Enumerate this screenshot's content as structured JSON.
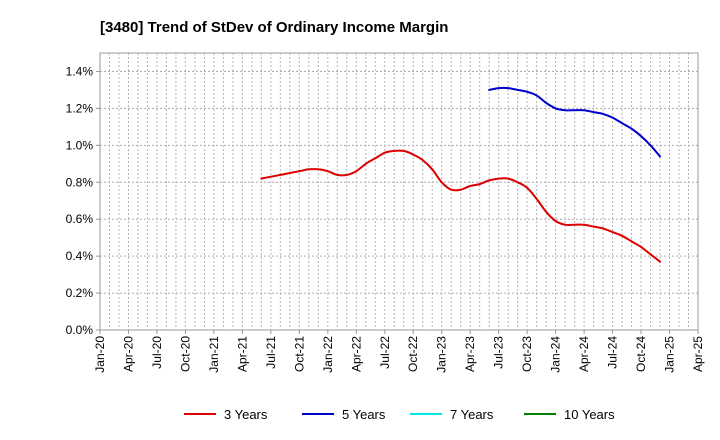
{
  "chart_data": {
    "type": "line",
    "title": "[3480]  Trend of StDev of Ordinary Income Margin",
    "xlabel": "",
    "ylabel": "",
    "x_ticks": [
      "Jan-20",
      "Apr-20",
      "Jul-20",
      "Oct-20",
      "Jan-21",
      "Apr-21",
      "Jul-21",
      "Oct-21",
      "Jan-22",
      "Apr-22",
      "Jul-22",
      "Oct-22",
      "Jan-23",
      "Apr-23",
      "Jul-23",
      "Oct-23",
      "Jan-24",
      "Apr-24",
      "Jul-24",
      "Oct-24",
      "Jan-25",
      "Apr-25"
    ],
    "y_ticks": [
      "0.0%",
      "0.2%",
      "0.4%",
      "0.6%",
      "0.8%",
      "1.0%",
      "1.2%",
      "1.4%"
    ],
    "ylim": [
      0,
      1.5
    ],
    "grid": true,
    "legend_position": "bottom",
    "series": [
      {
        "name": "3 Years",
        "color": "#dd0000",
        "points": [
          [
            "Jun-21",
            0.82
          ],
          [
            "Jul-21",
            0.83
          ],
          [
            "Aug-21",
            0.84
          ],
          [
            "Sep-21",
            0.85
          ],
          [
            "Oct-21",
            0.86
          ],
          [
            "Nov-21",
            0.87
          ],
          [
            "Dec-21",
            0.87
          ],
          [
            "Jan-22",
            0.86
          ],
          [
            "Feb-22",
            0.84
          ],
          [
            "Mar-22",
            0.84
          ],
          [
            "Apr-22",
            0.86
          ],
          [
            "May-22",
            0.9
          ],
          [
            "Jun-22",
            0.93
          ],
          [
            "Jul-22",
            0.96
          ],
          [
            "Aug-22",
            0.97
          ],
          [
            "Sep-22",
            0.97
          ],
          [
            "Oct-22",
            0.95
          ],
          [
            "Nov-22",
            0.92
          ],
          [
            "Dec-22",
            0.87
          ],
          [
            "Jan-23",
            0.8
          ],
          [
            "Feb-23",
            0.76
          ],
          [
            "Mar-23",
            0.76
          ],
          [
            "Apr-23",
            0.78
          ],
          [
            "May-23",
            0.79
          ],
          [
            "Jun-23",
            0.81
          ],
          [
            "Jul-23",
            0.82
          ],
          [
            "Aug-23",
            0.82
          ],
          [
            "Sep-23",
            0.8
          ],
          [
            "Oct-23",
            0.77
          ],
          [
            "Nov-23",
            0.71
          ],
          [
            "Dec-23",
            0.64
          ],
          [
            "Jan-24",
            0.59
          ],
          [
            "Feb-24",
            0.57
          ],
          [
            "Mar-24",
            0.57
          ],
          [
            "Apr-24",
            0.57
          ],
          [
            "May-24",
            0.56
          ],
          [
            "Jun-24",
            0.55
          ],
          [
            "Jul-24",
            0.53
          ],
          [
            "Aug-24",
            0.51
          ],
          [
            "Sep-24",
            0.48
          ],
          [
            "Oct-24",
            0.45
          ],
          [
            "Nov-24",
            0.41
          ],
          [
            "Dec-24",
            0.37
          ]
        ]
      },
      {
        "name": "5 Years",
        "color": "#0000cc",
        "points": [
          [
            "Jun-23",
            1.3
          ],
          [
            "Jul-23",
            1.31
          ],
          [
            "Aug-23",
            1.31
          ],
          [
            "Sep-23",
            1.3
          ],
          [
            "Oct-23",
            1.29
          ],
          [
            "Nov-23",
            1.27
          ],
          [
            "Dec-23",
            1.23
          ],
          [
            "Jan-24",
            1.2
          ],
          [
            "Feb-24",
            1.19
          ],
          [
            "Mar-24",
            1.19
          ],
          [
            "Apr-24",
            1.19
          ],
          [
            "May-24",
            1.18
          ],
          [
            "Jun-24",
            1.17
          ],
          [
            "Jul-24",
            1.15
          ],
          [
            "Aug-24",
            1.12
          ],
          [
            "Sep-24",
            1.09
          ],
          [
            "Oct-24",
            1.05
          ],
          [
            "Nov-24",
            1.0
          ],
          [
            "Dec-24",
            0.94
          ]
        ]
      },
      {
        "name": "7 Years",
        "color": "#00e5e5",
        "points": []
      },
      {
        "name": "10 Years",
        "color": "#008000",
        "points": []
      }
    ]
  }
}
